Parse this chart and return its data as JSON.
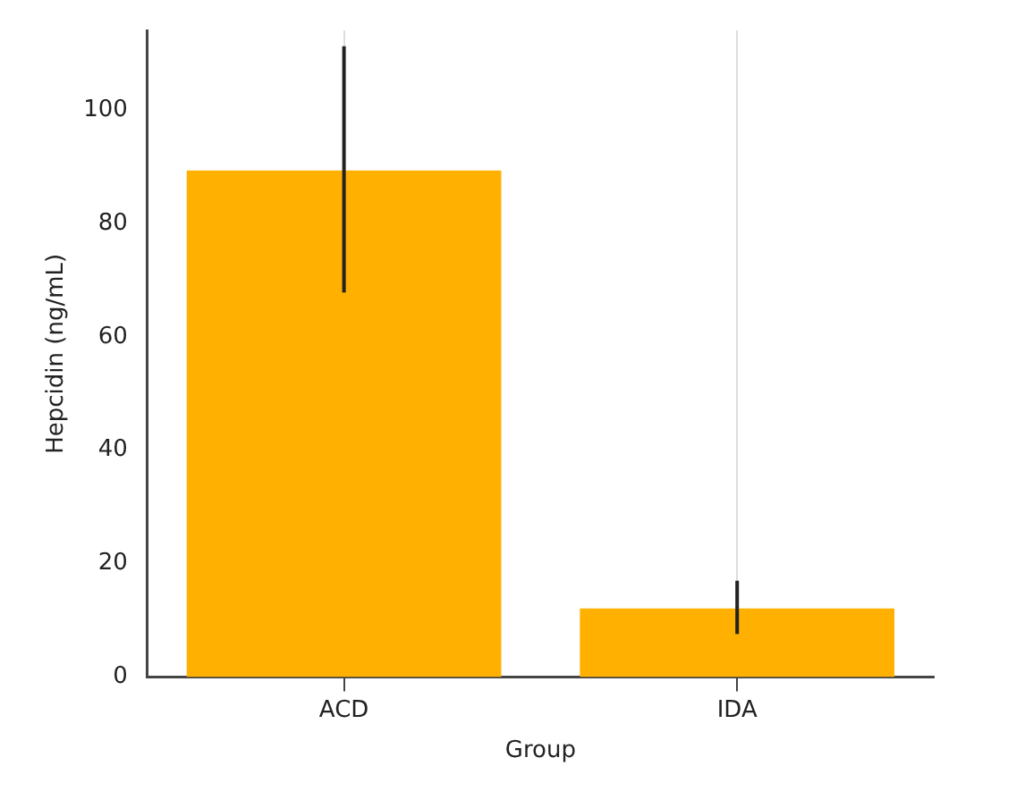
{
  "chart_data": {
    "type": "bar",
    "xlabel": "Group",
    "ylabel": "Hepcidin (ng/mL)",
    "categories": [
      "ACD",
      "IDA"
    ],
    "values": [
      89.3,
      12.1
    ],
    "errors": [
      [
        67.8,
        111.2
      ],
      [
        7.6,
        17.0
      ]
    ],
    "color": "#ffb000",
    "ylim": [
      0,
      114
    ],
    "yticks": [
      0,
      20,
      40,
      60,
      80,
      100
    ],
    "grid": "x",
    "legend": false
  }
}
